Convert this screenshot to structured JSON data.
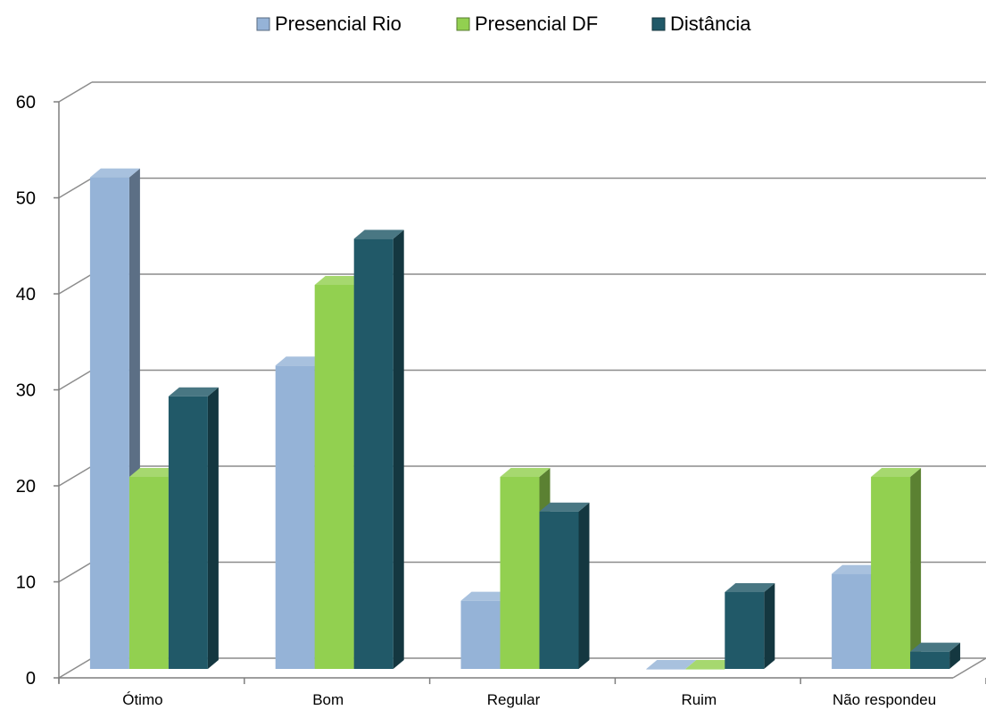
{
  "chart_data": {
    "type": "bar",
    "style": "3d-clustered-column",
    "categories": [
      "Ótimo",
      "Bom",
      "Regular",
      "Ruim",
      "Não respondeu"
    ],
    "series": [
      {
        "name": "Presencial Rio",
        "color": "#95b3d7",
        "values": [
          51.2,
          31.6,
          7.1,
          0,
          9.9
        ]
      },
      {
        "name": "Presencial DF",
        "color": "#92d050",
        "values": [
          20,
          40,
          20,
          0,
          20
        ]
      },
      {
        "name": "Distância",
        "color": "#215968",
        "values": [
          28.4,
          44.8,
          16.4,
          8,
          1.8
        ]
      }
    ],
    "y_ticks": [
      "0",
      "10",
      "20",
      "30",
      "40",
      "50",
      "60"
    ],
    "ylim": [
      0,
      60
    ],
    "grid": true,
    "legend_position": "top"
  }
}
